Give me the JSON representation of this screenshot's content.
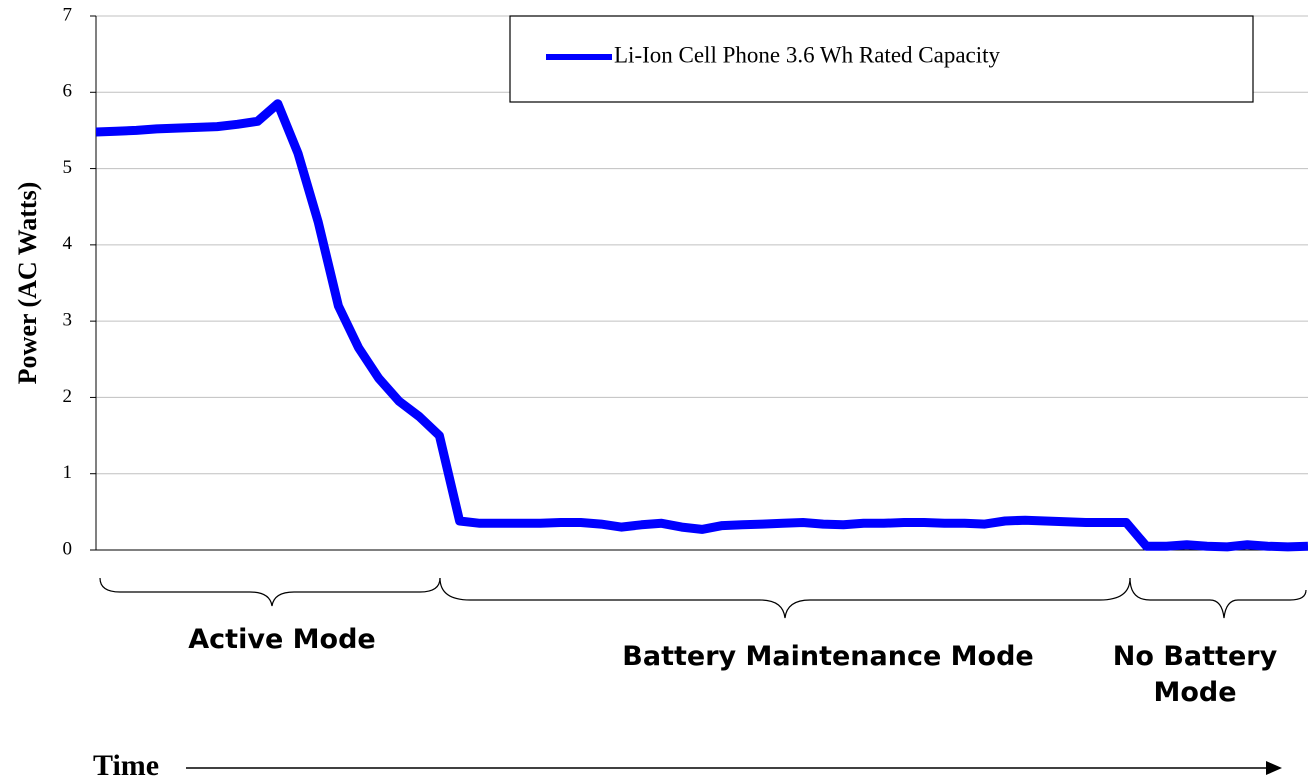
{
  "chart_data": {
    "type": "line",
    "ylabel": "Power (AC Watts)",
    "xlabel": "Time",
    "series": [
      {
        "name": "Li-Ion Cell Phone 3.6 Wh Rated Capacity",
        "color": "#0000ff",
        "values": [
          5.48,
          5.49,
          5.5,
          5.52,
          5.53,
          5.54,
          5.55,
          5.58,
          5.62,
          5.85,
          5.2,
          4.3,
          3.2,
          2.65,
          2.25,
          1.95,
          1.75,
          1.5,
          0.38,
          0.35,
          0.35,
          0.35,
          0.35,
          0.36,
          0.36,
          0.34,
          0.3,
          0.33,
          0.35,
          0.3,
          0.27,
          0.32,
          0.33,
          0.34,
          0.35,
          0.36,
          0.34,
          0.33,
          0.35,
          0.35,
          0.36,
          0.36,
          0.35,
          0.35,
          0.34,
          0.38,
          0.39,
          0.38,
          0.37,
          0.36,
          0.36,
          0.36,
          0.05,
          0.05,
          0.07,
          0.05,
          0.04,
          0.07,
          0.05,
          0.04,
          0.05
        ]
      }
    ],
    "ylim": [
      0,
      7
    ],
    "yticks": [
      0,
      1,
      2,
      3,
      4,
      5,
      6,
      7
    ],
    "grid": true,
    "legend": "top right",
    "annotations": [
      "Active Mode",
      "Battery Maintenance Mode",
      "No Battery Mode"
    ]
  }
}
